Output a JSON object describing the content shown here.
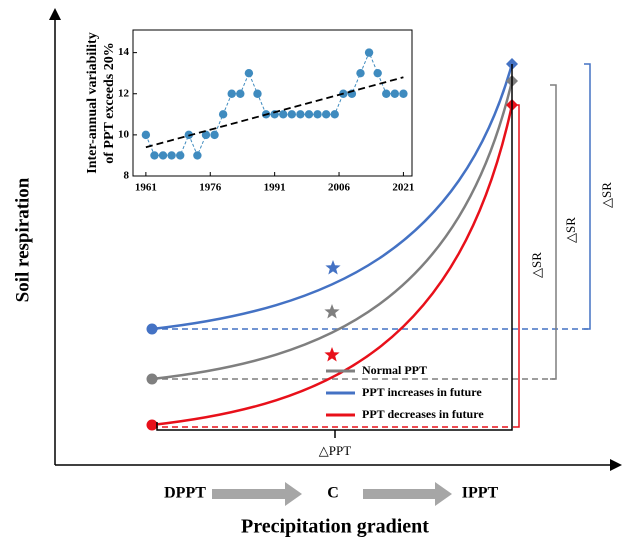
{
  "chart_data": {
    "type": "line",
    "ylabel": [
      "Inter-annual variability",
      "of PPT exceeds 20%"
    ],
    "x": [
      1961,
      1963,
      1965,
      1967,
      1969,
      1971,
      1973,
      1975,
      1977,
      1979,
      1981,
      1983,
      1985,
      1987,
      1989,
      1991,
      1993,
      1995,
      1997,
      1999,
      2001,
      2003,
      2005,
      2007,
      2009,
      2011,
      2013,
      2015,
      2017,
      2019,
      2021
    ],
    "series": [
      {
        "color": "#3f8bbf",
        "values": [
          10,
          9,
          9,
          9,
          9,
          10,
          9,
          10,
          10,
          11,
          12,
          12,
          13,
          12,
          11,
          11,
          11,
          11,
          11,
          11,
          11,
          11,
          11,
          12,
          12,
          13,
          14,
          13,
          12,
          12,
          12
        ]
      }
    ],
    "trend": {
      "color": "#000000",
      "x": [
        1961,
        2021
      ],
      "values": [
        9.4,
        12.8
      ]
    },
    "xlim": [
      1958,
      2023
    ],
    "ylim": [
      8,
      15.1
    ],
    "xticks": [
      1961,
      1976,
      1991,
      2006,
      2021
    ],
    "yticks": [
      8,
      10,
      12,
      14
    ]
  },
  "diagram": {
    "y_axis_label": "Soil respiration",
    "x_axis_label": "Precipitation gradient",
    "gradient": [
      "DPPT",
      "C",
      "IPPT"
    ],
    "delta_ppt": "△PPT",
    "delta_sr": [
      "△SR",
      "△SR",
      "△SR"
    ],
    "legend": [
      {
        "name": "Normal PPT",
        "color": "#7f7f7f"
      },
      {
        "name": "PPT increases in future",
        "color": "#4472c4"
      },
      {
        "name": "PPT decreases in future",
        "color": "#e8101a"
      }
    ]
  }
}
